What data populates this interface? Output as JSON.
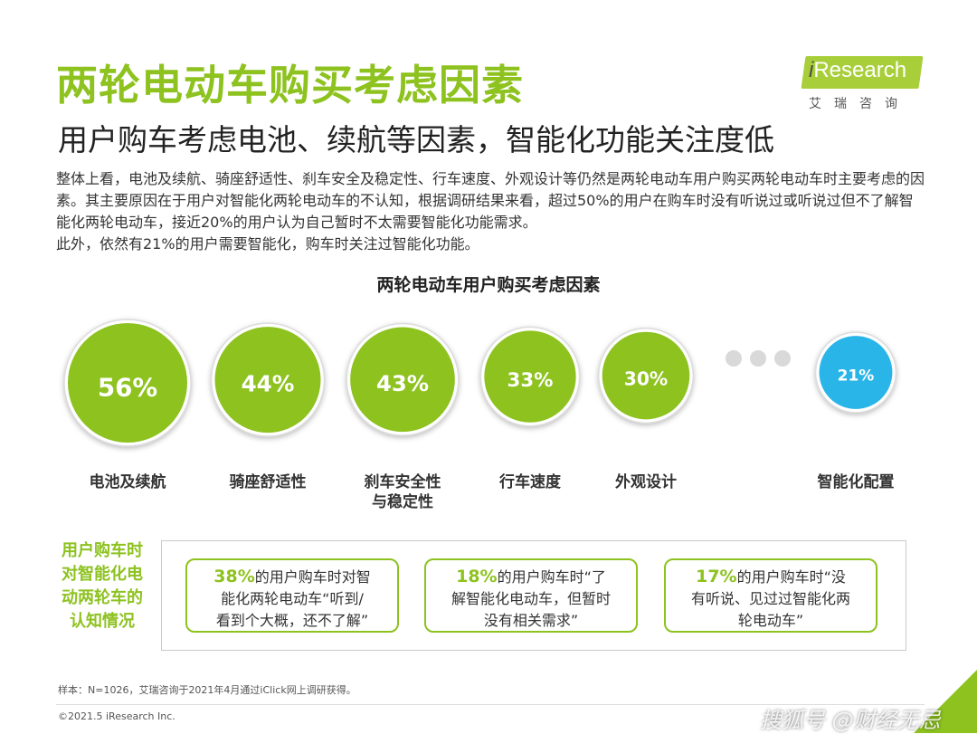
{
  "header": {
    "title": "两轮电动车购买考虑因素",
    "subtitle": "用户购车考虑电池、续航等因素，智能化功能关注度低"
  },
  "logo": {
    "brand_i": "i",
    "brand_rest": "Research",
    "cn": "艾瑞咨询"
  },
  "intro": {
    "para1": "整体上看，电池及续航、骑座舒适性、刹车安全及稳定性、行车速度、外观设计等仍然是两轮电动车用户购买两轮电动车时主要考虑的因素。其主要原因在于用户对智能化两轮电动车的不认知，根据调研结果来看，超过50%的用户在购车时没有听说过或听说过但不了解智能化两轮电动车，接近20%的用户认为自己暂时不太需要智能化功能需求。",
    "para2": "此外，依然有21%的用户需要智能化，购车时关注过智能化功能。"
  },
  "chart_data": {
    "type": "bubble",
    "title": "两轮电动车用户购买考虑因素",
    "categories": [
      "电池及续航",
      "骑座舒适性",
      "刹车安全性\n与稳定性",
      "行车速度",
      "外观设计",
      "智能化配置"
    ],
    "values": [
      56,
      44,
      43,
      33,
      30,
      21
    ],
    "value_labels": [
      "56%",
      "44%",
      "43%",
      "33%",
      "30%",
      "21%"
    ],
    "colors": [
      "#8dc21f",
      "#8dc21f",
      "#8dc21f",
      "#8dc21f",
      "#8dc21f",
      "#29b5e8"
    ],
    "ellipsis_color": "#d9d9d9"
  },
  "awareness": {
    "label": "用户购车时对智能化电动两轮车的认知情况",
    "cards": [
      {
        "pct": "38%",
        "text1": "的用户购车时对智",
        "text2": "能化两轮电动车“听到/",
        "text3": "看到个大概，还不了解”"
      },
      {
        "pct": "18%",
        "text1": "的用户购车时“了",
        "text2": "解智能化电动车，但暂时",
        "text3": "没有相关需求”"
      },
      {
        "pct": "17%",
        "text1": "的用户购车时“没",
        "text2": "有听说、见过过智能化两",
        "text3": "轮电动车”"
      }
    ]
  },
  "footer": {
    "note": "样本：N=1026，艾瑞咨询于2021年4月通过iClick网上调研获得。",
    "copyright": "©2021.5 iResearch Inc.",
    "watermark": "搜狐号 @财经无忌"
  },
  "colors": {
    "brand_green": "#8dc21f",
    "highlight_blue": "#29b5e8"
  }
}
